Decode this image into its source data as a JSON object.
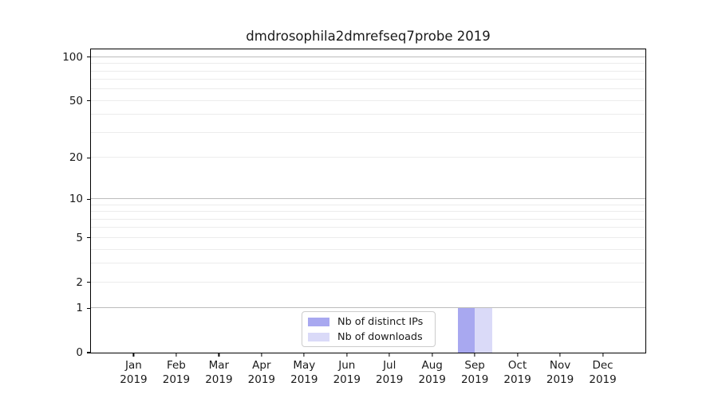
{
  "chart_data": {
    "type": "bar",
    "title": "dmdrosophila2dmrefseq7probe 2019",
    "categories": [
      "Jan 2019",
      "Feb 2019",
      "Mar 2019",
      "Apr 2019",
      "May 2019",
      "Jun 2019",
      "Jul 2019",
      "Aug 2019",
      "Sep 2019",
      "Oct 2019",
      "Nov 2019",
      "Dec 2019"
    ],
    "series": [
      {
        "name": "Nb of distinct IPs",
        "color": "#a8a8f0",
        "values": [
          0,
          0,
          0,
          0,
          0,
          0,
          0,
          0,
          1,
          0,
          0,
          0
        ]
      },
      {
        "name": "Nb of downloads",
        "color": "#dadaf8",
        "values": [
          0,
          0,
          0,
          0,
          0,
          0,
          0,
          0,
          1,
          0,
          0,
          0
        ]
      }
    ],
    "xlabel": "",
    "ylabel": "",
    "yscale": "log1p",
    "ylim": [
      0,
      113
    ],
    "yticks": [
      0,
      1,
      2,
      5,
      10,
      20,
      50,
      100
    ],
    "major_gridlines": [
      1,
      10,
      100
    ],
    "minor_gridlines": [
      2,
      3,
      4,
      5,
      6,
      7,
      8,
      9,
      20,
      30,
      40,
      50,
      60,
      70,
      80,
      90
    ],
    "grid": "horizontal",
    "legend_position": "lower-center-inside"
  },
  "colors": {
    "bar_distinct_ips": "#a8a8f0",
    "bar_downloads": "#dadaf8",
    "major_grid": "#bcbcbc",
    "minor_grid": "#ececec",
    "spine": "#000000",
    "legend_border": "#cccccc",
    "text": "#1a1a1a"
  }
}
